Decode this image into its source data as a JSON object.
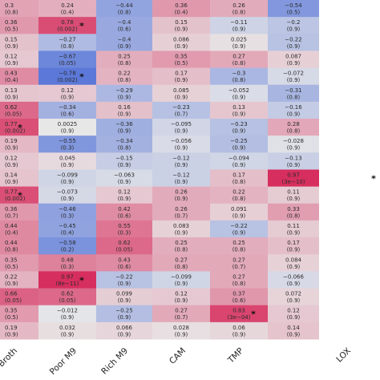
{
  "chart_data": {
    "type": "heatmap",
    "columns": [
      "Broth",
      "Poor M9",
      "Rich M9",
      "CAM",
      "TMP",
      "LOX"
    ],
    "rows": [
      [
        {
          "v": "0.3",
          "p": "(0.8)"
        },
        {
          "v": "0.24",
          "p": "(0.4)"
        },
        {
          "v": "−0.44",
          "p": "(0.8)"
        },
        {
          "v": "0.36",
          "p": "(0.4)"
        },
        {
          "v": "0.26",
          "p": "(0.8)"
        },
        {
          "v": "−0.54",
          "p": "(0.5)"
        }
      ],
      [
        {
          "v": "0.36",
          "p": "(0.5)"
        },
        {
          "v": "0.78",
          "p": "(0.002)",
          "sig": true
        },
        {
          "v": "−0.4",
          "p": "(0.6)"
        },
        {
          "v": "0.15",
          "p": "(0.9)"
        },
        {
          "v": "−0.11",
          "p": "(0.9)"
        },
        {
          "v": "−0.2",
          "p": "(0.9)"
        }
      ],
      [
        {
          "v": "0.15",
          "p": "(0.9)"
        },
        {
          "v": "−0.27",
          "p": "(0.8)"
        },
        {
          "v": "−0.4",
          "p": "(0.9)"
        },
        {
          "v": "0.086",
          "p": "(0.9)"
        },
        {
          "v": "0.025",
          "p": "(0.9)"
        },
        {
          "v": "−0.22",
          "p": "(0.9)"
        }
      ],
      [
        {
          "v": "0.12",
          "p": "(0.9)"
        },
        {
          "v": "−0.67",
          "p": "(0.05)"
        },
        {
          "v": "0.25",
          "p": "(0.8)"
        },
        {
          "v": "0.35",
          "p": "(0.5)"
        },
        {
          "v": "0.27",
          "p": "(0.8)"
        },
        {
          "v": "0.087",
          "p": "(0.9)"
        }
      ],
      [
        {
          "v": "0.43",
          "p": "(0.4)"
        },
        {
          "v": "−0.78",
          "p": "(0.002)",
          "sig": true
        },
        {
          "v": "0.22",
          "p": "(0.8)"
        },
        {
          "v": "0.17",
          "p": "(0.9)"
        },
        {
          "v": "−0.3",
          "p": "(0.8)"
        },
        {
          "v": "−0.072",
          "p": "(0.9)"
        }
      ],
      [
        {
          "v": "0.13",
          "p": "(0.9)"
        },
        {
          "v": "0.12",
          "p": "(0.9)"
        },
        {
          "v": "−0.29",
          "p": "(0.9)"
        },
        {
          "v": "0.085",
          "p": "(0.9)"
        },
        {
          "v": "−0.052",
          "p": "(0.9)"
        },
        {
          "v": "−0.31",
          "p": "(0.8)"
        }
      ],
      [
        {
          "v": "0.62",
          "p": "(0.05)"
        },
        {
          "v": "−0.34",
          "p": "(0.6)"
        },
        {
          "v": "0.16",
          "p": "(0.9)"
        },
        {
          "v": "−0.23",
          "p": "(0.7)"
        },
        {
          "v": "0.13",
          "p": "(0.9)"
        },
        {
          "v": "−0.16",
          "p": "(0.9)"
        }
      ],
      [
        {
          "v": "0.77",
          "p": "(0.002)",
          "sig": true
        },
        {
          "v": "0.0025",
          "p": "(0.9)"
        },
        {
          "v": "−0.36",
          "p": "(0.9)"
        },
        {
          "v": "−0.095",
          "p": "(0.9)"
        },
        {
          "v": "−0.23",
          "p": "(0.9)"
        },
        {
          "v": "0.28",
          "p": "(0.8)"
        }
      ],
      [
        {
          "v": "0.19",
          "p": "(0.9)"
        },
        {
          "v": "−0.55",
          "p": "(0.3)"
        },
        {
          "v": "−0.34",
          "p": "(0.8)"
        },
        {
          "v": "−0.056",
          "p": "(0.9)"
        },
        {
          "v": "−0.25",
          "p": "(0.9)"
        },
        {
          "v": "−0.028",
          "p": "(0.9)"
        }
      ],
      [
        {
          "v": "0.12",
          "p": "(0.9)"
        },
        {
          "v": "0.045",
          "p": "(0.9)"
        },
        {
          "v": "−0.15",
          "p": "(0.9)"
        },
        {
          "v": "−0.12",
          "p": "(0.9)"
        },
        {
          "v": "−0.094",
          "p": "(0.9)"
        },
        {
          "v": "−0.13",
          "p": "(0.9)"
        }
      ],
      [
        {
          "v": "0.14",
          "p": "(0.9)"
        },
        {
          "v": "−0.099",
          "p": "(0.9)"
        },
        {
          "v": "−0.063",
          "p": "(0.9)"
        },
        {
          "v": "−0.12",
          "p": "(0.9)"
        },
        {
          "v": "0.17",
          "p": "(0.8)"
        },
        {
          "v": "0.97",
          "p": "(3e−10)",
          "sig": true
        }
      ],
      [
        {
          "v": "0.77",
          "p": "(0.002)",
          "sig": true
        },
        {
          "v": "−0.073",
          "p": "(0.9)"
        },
        {
          "v": "0.12",
          "p": "(0.9)"
        },
        {
          "v": "0.26",
          "p": "(0.9)"
        },
        {
          "v": "0.22",
          "p": "(0.8)"
        },
        {
          "v": "0.11",
          "p": "(0.9)"
        }
      ],
      [
        {
          "v": "0.36",
          "p": "(0.7)"
        },
        {
          "v": "−0.46",
          "p": "(0.3)"
        },
        {
          "v": "0.42",
          "p": "(0.6)"
        },
        {
          "v": "0.26",
          "p": "(0.7)"
        },
        {
          "v": "0.091",
          "p": "(0.9)"
        },
        {
          "v": "0.33",
          "p": "(0.8)"
        }
      ],
      [
        {
          "v": "0.44",
          "p": "(0.4)"
        },
        {
          "v": "−0.45",
          "p": "(0.4)"
        },
        {
          "v": "0.55",
          "p": "(0.3)"
        },
        {
          "v": "0.083",
          "p": "(0.9)"
        },
        {
          "v": "−0.22",
          "p": "(0.9)"
        },
        {
          "v": "0.11",
          "p": "(0.9)"
        }
      ],
      [
        {
          "v": "0.44",
          "p": "(0.8)"
        },
        {
          "v": "−0.58",
          "p": "(0.2)"
        },
        {
          "v": "0.62",
          "p": "(0.05)"
        },
        {
          "v": "0.25",
          "p": "(0.8)"
        },
        {
          "v": "0.25",
          "p": "(0.8)"
        },
        {
          "v": "0.17",
          "p": "(0.9)"
        }
      ],
      [
        {
          "v": "0.35",
          "p": "(0.5)"
        },
        {
          "v": "0.48",
          "p": "(0.3)"
        },
        {
          "v": "0.43",
          "p": "(0.6)"
        },
        {
          "v": "0.27",
          "p": "(0.8)"
        },
        {
          "v": "0.27",
          "p": "(0.7)"
        },
        {
          "v": "0.084",
          "p": "(0.9)"
        }
      ],
      [
        {
          "v": "0.22",
          "p": "(0.9)"
        },
        {
          "v": "0.97",
          "p": "(8e−11)",
          "sig": true
        },
        {
          "v": "−0.22",
          "p": "(0.9)"
        },
        {
          "v": "−0.099",
          "p": "(0.9)"
        },
        {
          "v": "0.27",
          "p": "(0.8)"
        },
        {
          "v": "−0.066",
          "p": "(0.9)"
        }
      ],
      [
        {
          "v": "0.66",
          "p": "(0.05)"
        },
        {
          "v": "0.62",
          "p": "(0.05)"
        },
        {
          "v": "0.099",
          "p": "(0.9)"
        },
        {
          "v": "0.12",
          "p": "(0.9)"
        },
        {
          "v": "0.37",
          "p": "(0.6)"
        },
        {
          "v": "0.072",
          "p": "(0.9)"
        }
      ],
      [
        {
          "v": "0.35",
          "p": "(0.5)"
        },
        {
          "v": "−0.012",
          "p": "(0.9)"
        },
        {
          "v": "−0.25",
          "p": "(0.9)"
        },
        {
          "v": "0.27",
          "p": "(0.7)"
        },
        {
          "v": "0.83",
          "p": "(3e−04)",
          "sig": true
        },
        {
          "v": "0.12",
          "p": "(0.9)"
        }
      ],
      [
        {
          "v": "0.19",
          "p": "(0.9)"
        },
        {
          "v": "0.032",
          "p": "(0.9)"
        },
        {
          "v": "0.066",
          "p": "(0.9)"
        },
        {
          "v": "0.028",
          "p": "(0.9)"
        },
        {
          "v": "0.06",
          "p": "(0.9)"
        },
        {
          "v": "0.14",
          "p": "(0.9)"
        }
      ]
    ],
    "significance_marker": "*",
    "colors": {
      "negative": "#3b5fd6",
      "neutral": "#e8e8e8",
      "positive": "#d6295a"
    },
    "color_range": [
      -1,
      1
    ],
    "grid": false,
    "legend": "none"
  }
}
